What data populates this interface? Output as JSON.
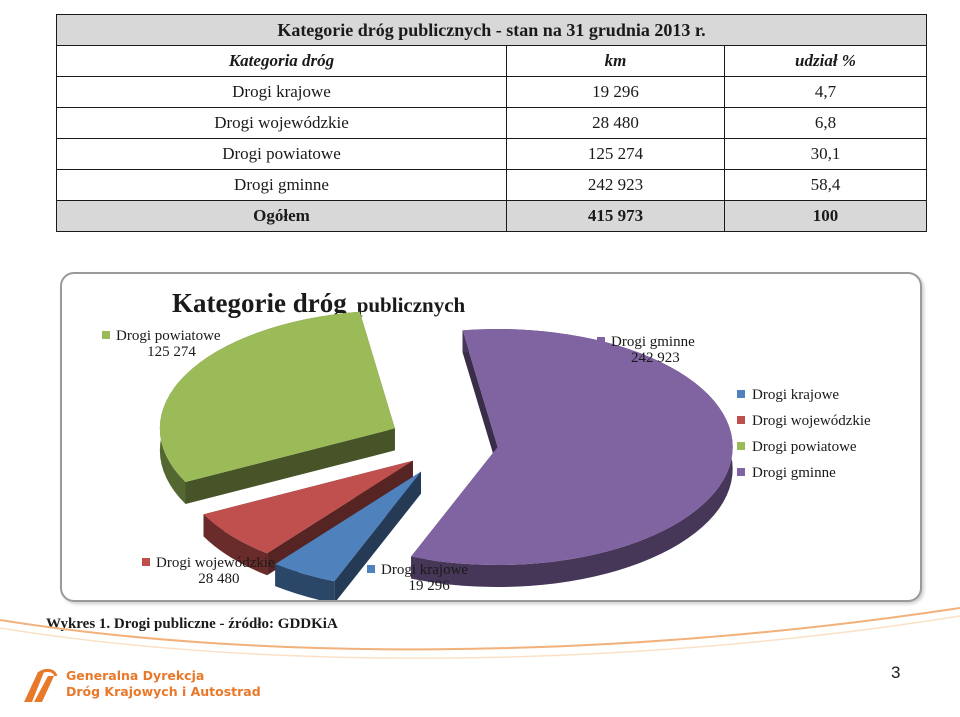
{
  "table": {
    "title": "Kategorie dróg publicznych - stan na 31 grudnia 2013 r.",
    "headers": [
      "Kategoria dróg",
      "km",
      "udział %"
    ],
    "rows": [
      [
        "Drogi krajowe",
        "19 296",
        "4,7"
      ],
      [
        "Drogi wojewódzkie",
        "28 480",
        "6,8"
      ],
      [
        "Drogi powiatowe",
        "125 274",
        "30,1"
      ],
      [
        "Drogi gminne",
        "242 923",
        "58,4"
      ]
    ],
    "total": [
      "Ogółem",
      "415 973",
      "100"
    ]
  },
  "chart_data": {
    "type": "pie",
    "title_part1": "Kategorie dróg",
    "title_part2": "publicznych",
    "categories": [
      "Drogi krajowe",
      "Drogi wojewódzkie",
      "Drogi powiatowe",
      "Drogi gminne"
    ],
    "values": [
      19296,
      28480,
      125274,
      242923
    ],
    "value_labels": [
      "19 296",
      "28 480",
      "125 274",
      "242 923"
    ],
    "colors": [
      "#4f81bd",
      "#c0504d",
      "#9bbb59",
      "#8064a2"
    ],
    "legend": [
      "Drogi krajowe",
      "Drogi wojewódzkie",
      "Drogi powiatowe",
      "Drogi gminne"
    ],
    "legend_position": "right",
    "exploded": true,
    "style": "3d"
  },
  "caption": "Wykres 1. Drogi publiczne - źródło: GDDKiA",
  "footer": {
    "org_line1": "Generalna Dyrekcja",
    "org_line2": "Dróg Krajowych i Autostrad",
    "page_number": "3",
    "accent_color": "#e8792a"
  }
}
